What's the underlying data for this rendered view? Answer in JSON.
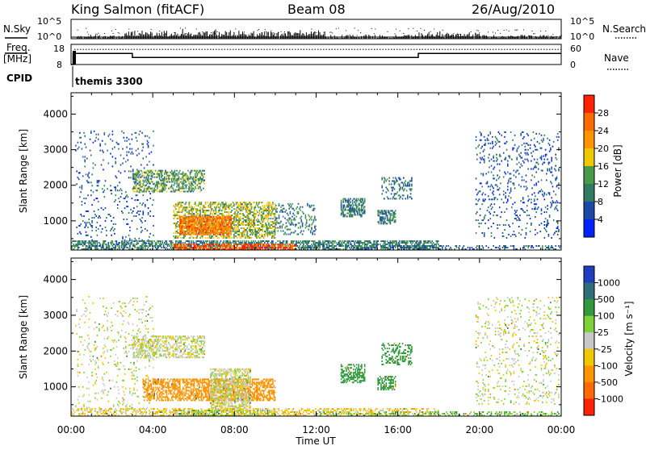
{
  "header": {
    "station": "King Salmon (fitACF)",
    "beam": "Beam 08",
    "date": "26/Aug/2010"
  },
  "side_labels": {
    "nsky": "N.Sky",
    "nsearch": "N.Search",
    "freq": "Freq.",
    "freq_unit": "[MHz]",
    "nave": "Nave",
    "cpid": "CPID",
    "cpid_value": "themis 3300",
    "nsky_top": "10^5",
    "nsky_bottom": "10^0",
    "nsearch_top": "10^5",
    "nsearch_bottom": "10^0",
    "freq_top": "18",
    "freq_bottom": "8",
    "nave_top": "60",
    "nave_bottom": "0"
  },
  "colors": {
    "background": "#ffffff",
    "axis": "#000000",
    "grey_scatter": "#c8c8c8"
  },
  "chart_data": [
    {
      "type": "heatmap",
      "name": "power",
      "ylabel": "Slant Range [km]",
      "xlabel": "Time UT",
      "xlim": [
        0,
        24
      ],
      "ylim": [
        180,
        4600
      ],
      "x_ticks": [
        "00:00",
        "04:00",
        "08:00",
        "12:00",
        "16:00",
        "20:00",
        "00:00"
      ],
      "y_ticks": [
        1000,
        2000,
        3000,
        4000
      ],
      "colorbar": {
        "label": "Power [dB]",
        "ticks": [
          "4",
          "8",
          "12",
          "16",
          "20",
          "24",
          "28"
        ],
        "range": [
          0,
          30
        ],
        "colors": [
          "#0022ff",
          "#1d48a8",
          "#2e7a62",
          "#4a9a4a",
          "#f0c800",
          "#ff9400",
          "#ff6a00",
          "#ff2200"
        ]
      },
      "regions": [
        {
          "t0": 0.2,
          "t1": 4.0,
          "r0": 300,
          "r1": 3500,
          "value": 6,
          "density": 0.07
        },
        {
          "t0": 3.0,
          "t1": 6.5,
          "r0": 1800,
          "r1": 2400,
          "value": 12,
          "density": 0.45
        },
        {
          "t0": 5.0,
          "t1": 10.0,
          "r0": 500,
          "r1": 1500,
          "value": 15,
          "density": 0.5
        },
        {
          "t0": 5.3,
          "t1": 7.8,
          "r0": 600,
          "r1": 1100,
          "value": 23,
          "density": 0.75
        },
        {
          "t0": 0.0,
          "t1": 18.0,
          "r0": 180,
          "r1": 420,
          "value": 10,
          "density": 0.55
        },
        {
          "t0": 5.0,
          "t1": 11.0,
          "r0": 180,
          "r1": 350,
          "value": 26,
          "density": 0.6
        },
        {
          "t0": 10.0,
          "t1": 12.0,
          "r0": 600,
          "r1": 1500,
          "value": 9,
          "density": 0.2
        },
        {
          "t0": 13.2,
          "t1": 14.4,
          "r0": 1100,
          "r1": 1600,
          "value": 10,
          "density": 0.55
        },
        {
          "t0": 15.0,
          "t1": 15.9,
          "r0": 900,
          "r1": 1300,
          "value": 9,
          "density": 0.55
        },
        {
          "t0": 15.2,
          "t1": 16.7,
          "r0": 1600,
          "r1": 2200,
          "value": 8,
          "density": 0.3
        },
        {
          "t0": 19.8,
          "t1": 23.9,
          "r0": 500,
          "r1": 3500,
          "value": 6,
          "density": 0.1
        },
        {
          "t0": 12.0,
          "t1": 24.0,
          "r0": 180,
          "r1": 300,
          "value": 8,
          "density": 0.3
        }
      ]
    },
    {
      "type": "heatmap",
      "name": "velocity",
      "ylabel": "Slant Range [km]",
      "xlabel": "Time UT",
      "xlim": [
        0,
        24
      ],
      "ylim": [
        180,
        4600
      ],
      "x_ticks": [
        "00:00",
        "04:00",
        "08:00",
        "12:00",
        "16:00",
        "20:00",
        "00:00"
      ],
      "y_ticks": [
        1000,
        2000,
        3000,
        4000
      ],
      "colorbar": {
        "label": "Velocity [m s⁻¹]",
        "ticks": [
          "1000",
          "500",
          "100",
          "25",
          "-25",
          "-100",
          "-500",
          "-1000"
        ],
        "colors": [
          "#1f3fbf",
          "#2c6e7a",
          "#2e9a3a",
          "#7fd13a",
          "#c8c8c8",
          "#f0c800",
          "#ff9400",
          "#ff6a00",
          "#ff2200"
        ]
      },
      "regions": [
        {
          "t0": 0.2,
          "t1": 4.0,
          "r0": 300,
          "r1": 3500,
          "value": 0,
          "density": 0.07
        },
        {
          "t0": 3.0,
          "t1": 6.5,
          "r0": 1800,
          "r1": 2400,
          "value": 0,
          "density": 0.45
        },
        {
          "t0": 3.5,
          "t1": 10.0,
          "r0": 600,
          "r1": 1200,
          "value": -300,
          "density": 0.55
        },
        {
          "t0": 6.8,
          "t1": 8.8,
          "r0": 300,
          "r1": 1500,
          "value": 0,
          "density": 0.55
        },
        {
          "t0": 5.0,
          "t1": 10.0,
          "r0": 180,
          "r1": 350,
          "value": 60,
          "density": 0.55
        },
        {
          "t0": 0.0,
          "t1": 18.0,
          "r0": 180,
          "r1": 400,
          "value": -60,
          "density": 0.35
        },
        {
          "t0": 13.2,
          "t1": 14.4,
          "r0": 1100,
          "r1": 1600,
          "value": 300,
          "density": 0.55
        },
        {
          "t0": 15.0,
          "t1": 15.9,
          "r0": 900,
          "r1": 1300,
          "value": 300,
          "density": 0.55
        },
        {
          "t0": 15.2,
          "t1": 16.7,
          "r0": 1600,
          "r1": 2200,
          "value": 300,
          "density": 0.3
        },
        {
          "t0": 19.8,
          "t1": 23.9,
          "r0": 500,
          "r1": 3500,
          "value": 0,
          "density": 0.1
        },
        {
          "t0": 12.0,
          "t1": 24.0,
          "r0": 180,
          "r1": 300,
          "value": 80,
          "density": 0.3
        }
      ]
    }
  ],
  "top_panels": {
    "freq_mhz": [
      {
        "t0": 0.0,
        "t1": 0.1,
        "value": 8
      },
      {
        "t0": 0.1,
        "t1": 3.0,
        "value": 13.5
      },
      {
        "t0": 3.0,
        "t1": 17.0,
        "value": 11.5
      },
      {
        "t0": 17.0,
        "t1": 24.0,
        "value": 13.5
      }
    ],
    "nave_level": 45
  }
}
